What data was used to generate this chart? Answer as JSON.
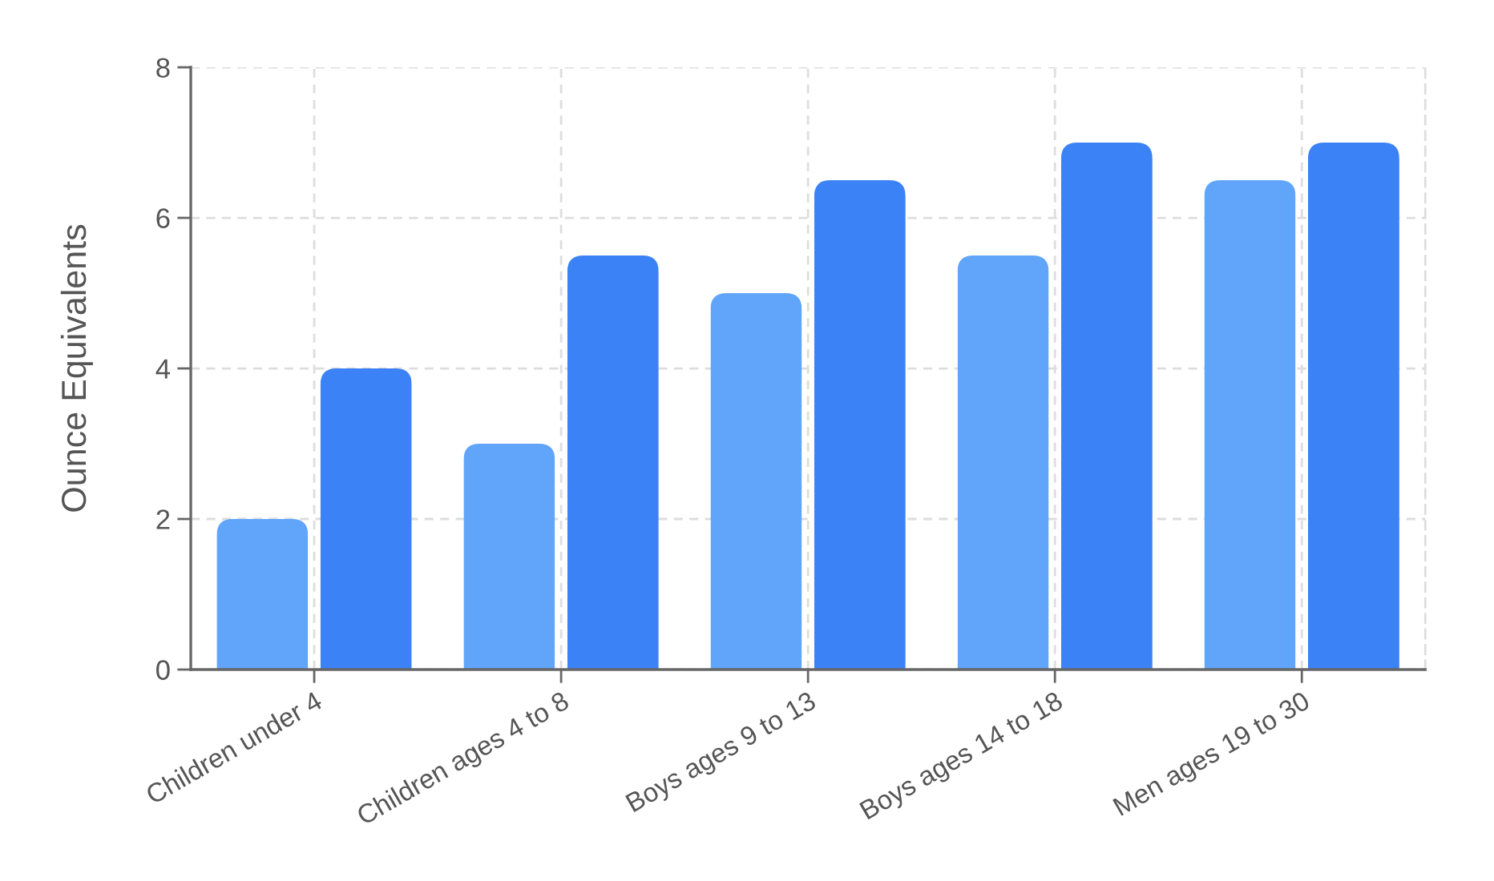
{
  "chart_data": {
    "type": "bar",
    "ylabel": "Ounce Equivalents",
    "categories": [
      "Children under 4",
      "Children ages 4 to 8",
      "Boys ages 9 to 13",
      "Boys ages 14 to 18",
      "Men ages 19 to 30"
    ],
    "series": [
      {
        "color": "#60a5fa",
        "values": [
          2,
          3,
          5,
          5.5,
          6.5
        ]
      },
      {
        "color": "#3b82f6",
        "values": [
          4,
          5.5,
          6.5,
          7,
          7
        ]
      }
    ],
    "ylim": [
      0,
      8
    ],
    "yticks": [
      0,
      2,
      4,
      6,
      8
    ],
    "grid": true
  }
}
